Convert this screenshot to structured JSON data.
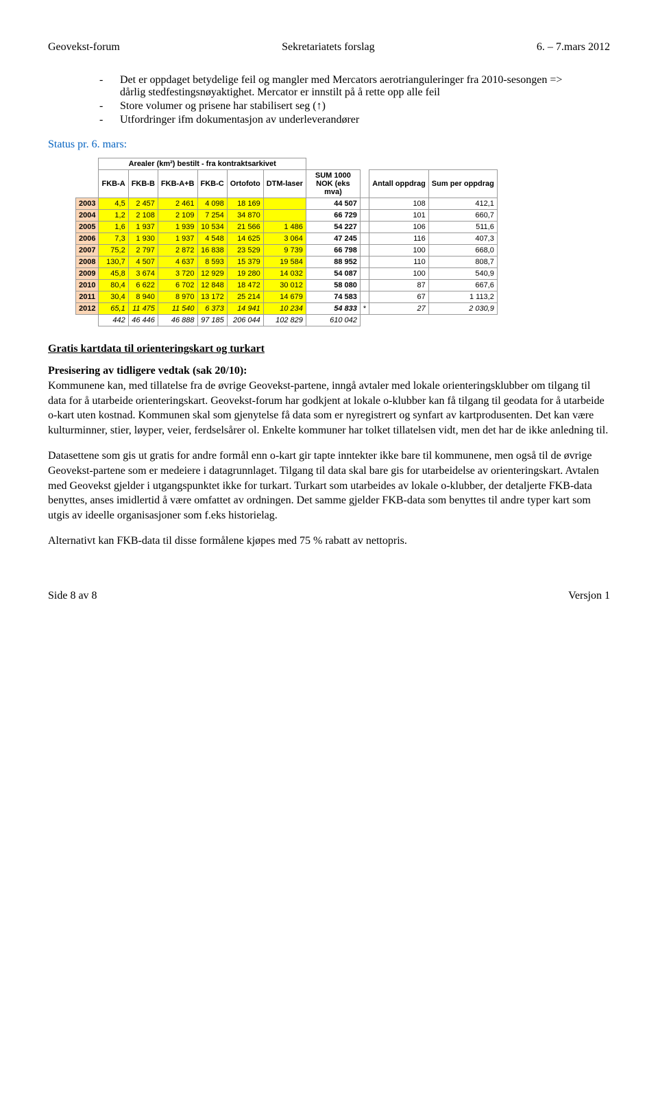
{
  "header": {
    "left": "Geovekst-forum",
    "center": "Sekretariatets forslag",
    "right": "6. – 7.mars 2012"
  },
  "bullets": [
    "Det er oppdaget betydelige feil og mangler med Mercators aerotrianguleringer fra 2010-sesongen => dårlig stedfestingsnøyaktighet. Mercator er innstilt på å rette opp alle feil",
    "Store volumer og prisene har stabilisert seg (↑)",
    "Utfordringer ifm dokumentasjon av underleverandører"
  ],
  "status_line": "Status pr. 6. mars:",
  "table": {
    "title": "Arealer (km²) bestilt - fra kontraktsarkivet",
    "columns": [
      "",
      "FKB-A",
      "FKB-B",
      "FKB-A+B",
      "FKB-C",
      "Ortofoto",
      "DTM-laser",
      "SUM 1000 NOK (eks mva)",
      "",
      "Antall oppdrag",
      "Sum per oppdrag"
    ],
    "rows": [
      {
        "year": "2003",
        "a": "4,5",
        "b": "2 457",
        "ab": "2 461",
        "c": "4 098",
        "o": "18 169",
        "d": "",
        "sum": "44 507",
        "star": "",
        "n": "108",
        "per": "412,1"
      },
      {
        "year": "2004",
        "a": "1,2",
        "b": "2 108",
        "ab": "2 109",
        "c": "7 254",
        "o": "34 870",
        "d": "",
        "sum": "66 729",
        "star": "",
        "n": "101",
        "per": "660,7"
      },
      {
        "year": "2005",
        "a": "1,6",
        "b": "1 937",
        "ab": "1 939",
        "c": "10 534",
        "o": "21 566",
        "d": "1 486",
        "sum": "54 227",
        "star": "",
        "n": "106",
        "per": "511,6"
      },
      {
        "year": "2006",
        "a": "7,3",
        "b": "1 930",
        "ab": "1 937",
        "c": "4 548",
        "o": "14 625",
        "d": "3 064",
        "sum": "47 245",
        "star": "",
        "n": "116",
        "per": "407,3"
      },
      {
        "year": "2007",
        "a": "75,2",
        "b": "2 797",
        "ab": "2 872",
        "c": "16 838",
        "o": "23 529",
        "d": "9 739",
        "sum": "66 798",
        "star": "",
        "n": "100",
        "per": "668,0"
      },
      {
        "year": "2008",
        "a": "130,7",
        "b": "4 507",
        "ab": "4 637",
        "c": "8 593",
        "o": "15 379",
        "d": "19 584",
        "sum": "88 952",
        "star": "",
        "n": "110",
        "per": "808,7"
      },
      {
        "year": "2009",
        "a": "45,8",
        "b": "3 674",
        "ab": "3 720",
        "c": "12 929",
        "o": "19 280",
        "d": "14 032",
        "sum": "54 087",
        "star": "",
        "n": "100",
        "per": "540,9"
      },
      {
        "year": "2010",
        "a": "80,4",
        "b": "6 622",
        "ab": "6 702",
        "c": "12 848",
        "o": "18 472",
        "d": "30 012",
        "sum": "58 080",
        "star": "",
        "n": "87",
        "per": "667,6"
      },
      {
        "year": "2011",
        "a": "30,4",
        "b": "8 940",
        "ab": "8 970",
        "c": "13 172",
        "o": "25 214",
        "d": "14 679",
        "sum": "74 583",
        "star": "",
        "n": "67",
        "per": "1 113,2"
      },
      {
        "year": "2012",
        "a": "65,1",
        "b": "11 475",
        "ab": "11 540",
        "c": "6 373",
        "o": "14 941",
        "d": "10 234",
        "sum": "54 833",
        "star": "*",
        "n": "27",
        "per": "2 030,9",
        "italic": true
      }
    ],
    "totals": {
      "a": "442",
      "b": "46 446",
      "ab": "46 888",
      "c": "97 185",
      "o": "206 044",
      "d": "102 829",
      "sum": "610 042"
    }
  },
  "section_title": "Gratis kartdata til orienteringskart og turkart",
  "subheading": "Presisering av tidligere vedtak (sak 20/10):",
  "para1": "Kommunene kan, med tillatelse fra de øvrige Geovekst-partene, inngå avtaler med lokale orienteringsklubber om tilgang til data for å utarbeide orienteringskart. Geovekst-forum har godkjent at lokale o-klubber kan få tilgang til geodata for å utarbeide o-kart uten kostnad. Kommunen skal som gjenytelse få data som er nyregistrert og synfart av kartprodusenten. Det kan være kulturminner, stier, løyper, veier, ferdselsårer ol. Enkelte kommuner har tolket tillatelsen vidt, men det har de ikke anledning til.",
  "para2": "Datasettene som gis ut gratis for andre formål enn o-kart gir tapte inntekter ikke bare til kommunene, men også til de øvrige Geovekst-partene som er medeiere i datagrunnlaget. Tilgang til data skal bare gis for utarbeidelse av orienteringskart. Avtalen med Geovekst gjelder i utgangspunktet ikke for turkart. Turkart som utarbeides av lokale o-klubber, der detaljerte FKB-data benyttes, anses imidlertid å være omfattet av ordningen. Det samme gjelder FKB-data som benyttes til andre typer kart som utgis av ideelle organisasjoner som f.eks historielag.",
  "para3": "Alternativt kan FKB-data til disse formålene kjøpes med 75 % rabatt av nettopris.",
  "footer": {
    "left": "Side 8 av 8",
    "right": "Versjon 1"
  }
}
